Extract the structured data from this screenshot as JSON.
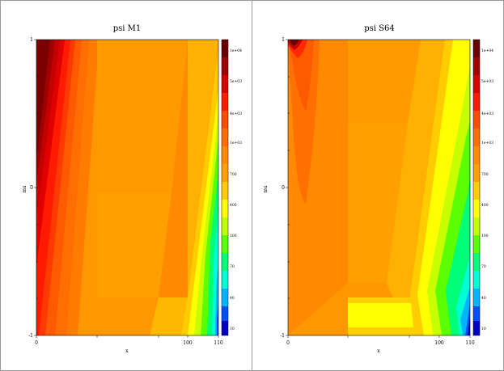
{
  "chart_data": [
    {
      "type": "heatmap",
      "title": "psi M1",
      "xlabel": "x",
      "ylabel": "mu",
      "xlim": [
        0,
        110
      ],
      "ylim": [
        -1,
        1
      ],
      "x_ticks": [
        {
          "v": 0,
          "label": "0"
        },
        {
          "v": 100,
          "label": "100"
        },
        {
          "v": 110,
          "label": "110"
        }
      ],
      "y_ticks": [
        {
          "v": -1,
          "label": "-1"
        },
        {
          "v": 0,
          "label": "0"
        },
        {
          "v": 1,
          "label": "1"
        }
      ],
      "colorbar": {
        "labels": [
          "1e+04",
          "5e+03",
          "4e+03",
          "1e+03",
          "700",
          "400",
          "100",
          "70",
          "40",
          "10"
        ],
        "colors": [
          "#6b0000",
          "#a30000",
          "#d60000",
          "#ff1a00",
          "#ff4a00",
          "#ff6e00",
          "#ff8a00",
          "#ffa000",
          "#ffcc00",
          "#ffff00",
          "#c0ff00",
          "#5aff00",
          "#00ff78",
          "#00ffd6",
          "#00b4ff",
          "#0050ff",
          "#0000c8"
        ]
      }
    },
    {
      "type": "heatmap",
      "title": "psi S64",
      "xlabel": "x",
      "ylabel": "mu",
      "xlim": [
        0,
        110
      ],
      "ylim": [
        -1,
        1
      ],
      "x_ticks": [
        {
          "v": 0,
          "label": "0"
        },
        {
          "v": 100,
          "label": "100"
        },
        {
          "v": 110,
          "label": "110"
        }
      ],
      "y_ticks": [
        {
          "v": -1,
          "label": "-1"
        },
        {
          "v": 0,
          "label": "0"
        },
        {
          "v": 1,
          "label": "1"
        }
      ],
      "colorbar": {
        "labels": [
          "1e+04",
          "5e+03",
          "4e+03",
          "1e+03",
          "700",
          "400",
          "100",
          "70",
          "40",
          "10"
        ],
        "colors": [
          "#6b0000",
          "#a30000",
          "#d60000",
          "#ff1a00",
          "#ff4a00",
          "#ff6e00",
          "#ff8a00",
          "#ffa000",
          "#ffcc00",
          "#ffff00",
          "#c0ff00",
          "#5aff00",
          "#00ff78",
          "#00ffd6",
          "#00b4ff",
          "#0050ff",
          "#0000c8"
        ]
      }
    }
  ]
}
